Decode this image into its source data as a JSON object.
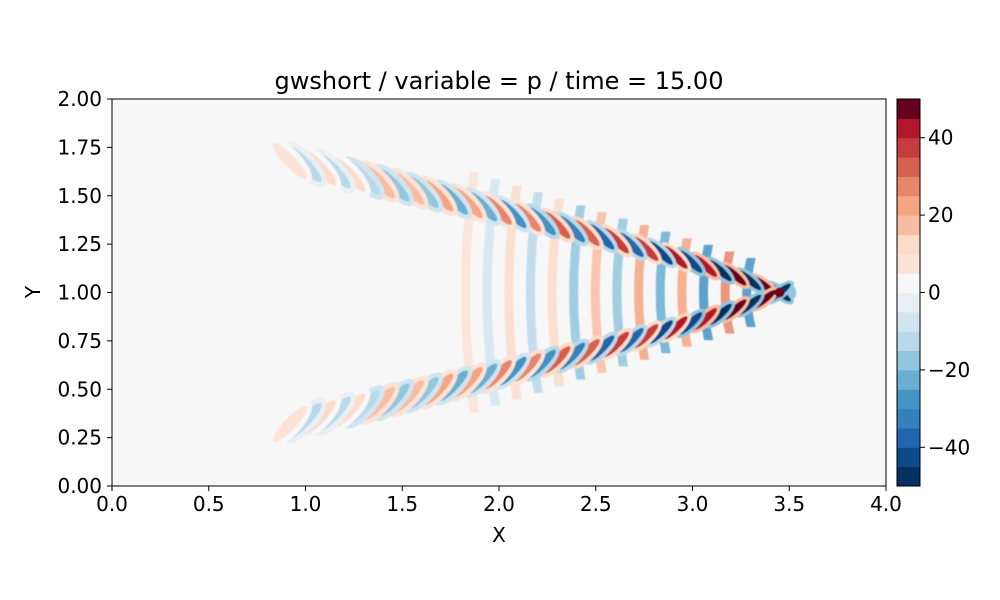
{
  "chart_data": {
    "type": "heatmap",
    "title": "gwshort / variable = p / time = 15.00",
    "xlabel": "X",
    "ylabel": "Y",
    "xlim": [
      0.0,
      4.0
    ],
    "ylim": [
      0.0,
      2.0
    ],
    "xticks": [
      "0.0",
      "0.5",
      "1.0",
      "1.5",
      "2.0",
      "2.5",
      "3.0",
      "3.5",
      "4.0"
    ],
    "yticks": [
      "0.00",
      "0.25",
      "0.50",
      "0.75",
      "1.00",
      "1.25",
      "1.50",
      "1.75",
      "2.00"
    ],
    "colorbar": {
      "range": [
        -50,
        50
      ],
      "levels": 20,
      "ticks": [
        "−40",
        "−20",
        "0",
        "20",
        "40"
      ],
      "tick_values": [
        -40,
        -20,
        0,
        20,
        40
      ],
      "colormap": "RdBu_r",
      "colors_low_to_high": [
        "#053061",
        "#0e4a8a",
        "#2166ac",
        "#3581bb",
        "#4393c3",
        "#6aaed2",
        "#92c5de",
        "#b9d9ea",
        "#d1e5f0",
        "#e8f0f4",
        "#f7f7f7",
        "#fbe3d7",
        "#fddbc7",
        "#f8bca2",
        "#f4a582",
        "#e7866a",
        "#d6604d",
        "#c53c3e",
        "#b2182b",
        "#67001f"
      ]
    },
    "pattern": {
      "description_values": "V-shaped gravity-wave pressure field opening to the left",
      "apex": [
        3.45,
        1.0
      ],
      "arm_end_upper": [
        0.92,
        1.68
      ],
      "arm_end_lower": [
        0.92,
        0.32
      ],
      "peak_value_at_apex": 50,
      "background_value": 0
    }
  }
}
